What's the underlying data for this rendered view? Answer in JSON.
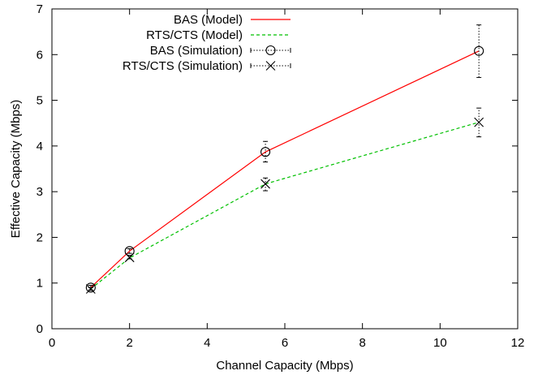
{
  "chart_data": {
    "type": "line",
    "xlabel": "Channel Capacity (Mbps)",
    "ylabel": "Effective Capacity (Mbps)",
    "xlim": [
      0,
      12
    ],
    "ylim": [
      0,
      7
    ],
    "xticks": [
      0,
      2,
      4,
      6,
      8,
      10,
      12
    ],
    "yticks": [
      0,
      1,
      2,
      3,
      4,
      5,
      6,
      7
    ],
    "grid": false,
    "legend_position": "top-right",
    "series": [
      {
        "name": "BAS (Model)",
        "kind": "line",
        "color": "#ff0000",
        "dash": "solid",
        "x": [
          1,
          2,
          5.5,
          11
        ],
        "y": [
          0.9,
          1.7,
          3.87,
          6.08
        ]
      },
      {
        "name": "RTS/CTS (Model)",
        "kind": "line",
        "color": "#00c000",
        "dash": "dashed",
        "x": [
          1,
          2,
          5.5,
          11
        ],
        "y": [
          0.87,
          1.55,
          3.17,
          4.52
        ]
      },
      {
        "name": "BAS (Simulation)",
        "kind": "errorbar",
        "marker": "circle",
        "color": "#000000",
        "x": [
          1,
          2,
          5.5,
          11
        ],
        "y": [
          0.9,
          1.7,
          3.87,
          6.08
        ],
        "ylow": [
          0.85,
          1.65,
          3.65,
          5.5
        ],
        "yhigh": [
          0.95,
          1.75,
          4.1,
          6.65
        ]
      },
      {
        "name": "RTS/CTS (Simulation)",
        "kind": "errorbar",
        "marker": "x",
        "color": "#000000",
        "x": [
          1,
          2,
          5.5,
          11
        ],
        "y": [
          0.87,
          1.56,
          3.17,
          4.52
        ],
        "ylow": [
          0.84,
          1.53,
          3.02,
          4.2
        ],
        "yhigh": [
          0.9,
          1.6,
          3.3,
          4.83
        ]
      }
    ]
  }
}
